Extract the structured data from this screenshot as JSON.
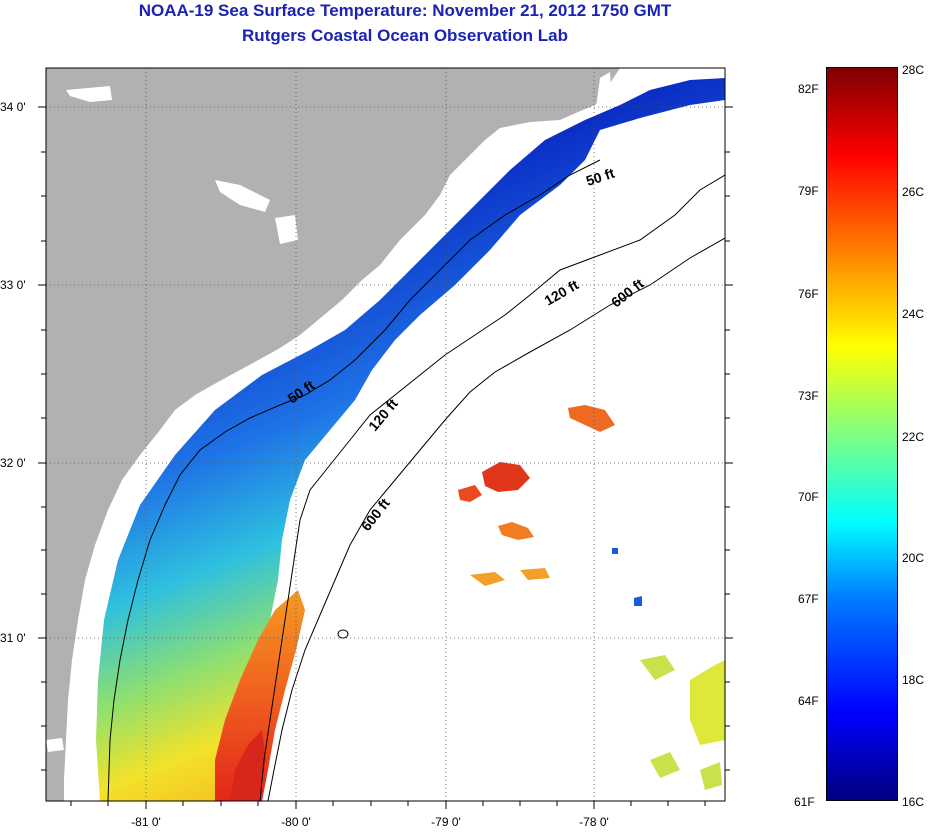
{
  "header": {
    "title": "NOAA-19 Sea Surface Temperature:  November 21, 2012 1750 GMT",
    "subtitle": "Rutgers Coastal Ocean Observation Lab"
  },
  "map": {
    "lat_labels": [
      "34 0'",
      "33 0'",
      "32 0'",
      "31 0'"
    ],
    "lon_labels": [
      "-81 0'",
      "-80 0'",
      "-79 0'",
      "-78 0'"
    ],
    "contour_labels": {
      "c50_north": "50 ft",
      "c50_south": "50 ft",
      "c120_north": "120 ft",
      "c120_south": "120 ft",
      "c600_north": "600 ft",
      "c600_south": "600 ft"
    },
    "colors": {
      "land": "#b1b1b1",
      "cloud_mask": "#ffffff",
      "cold": "#0a1ea8",
      "warm": "#e8321e"
    }
  },
  "colorbar": {
    "fahrenheit_labels": [
      "82F",
      "79F",
      "76F",
      "73F",
      "70F",
      "67F",
      "64F",
      "61F"
    ],
    "celsius_labels": [
      "28C",
      "26C",
      "24C",
      "22C",
      "20C",
      "18C",
      "16C"
    ],
    "colormap": "jet",
    "range_c": [
      16,
      28
    ],
    "range_f": [
      61,
      82
    ]
  }
}
